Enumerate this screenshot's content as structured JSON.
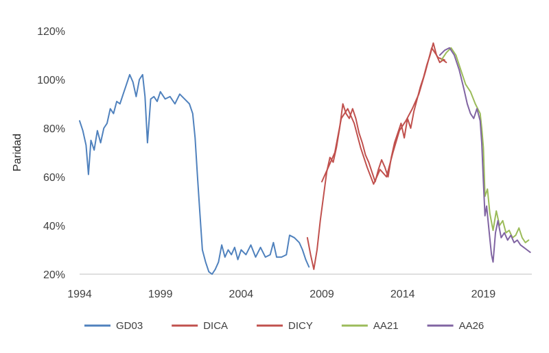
{
  "chart_data": {
    "type": "line",
    "title": "",
    "xlabel": "",
    "ylabel": "Paridad",
    "xlim": [
      1994,
      2022
    ],
    "ylim": [
      20,
      120
    ],
    "x_ticks": [
      "1994",
      "1999",
      "2004",
      "2009",
      "2014",
      "2019"
    ],
    "y_ticks": [
      "20%",
      "40%",
      "60%",
      "80%",
      "100%",
      "120%"
    ],
    "grid": false,
    "legend_position": "bottom",
    "series": [
      {
        "name": "GD03",
        "color": "#4F81BD",
        "points": [
          [
            1994.0,
            83
          ],
          [
            1994.2,
            79
          ],
          [
            1994.4,
            73
          ],
          [
            1994.55,
            61
          ],
          [
            1994.7,
            75
          ],
          [
            1994.9,
            71
          ],
          [
            1995.1,
            79
          ],
          [
            1995.3,
            74
          ],
          [
            1995.5,
            80
          ],
          [
            1995.7,
            82
          ],
          [
            1995.9,
            88
          ],
          [
            1996.1,
            86
          ],
          [
            1996.3,
            91
          ],
          [
            1996.5,
            90
          ],
          [
            1996.7,
            94
          ],
          [
            1996.9,
            98
          ],
          [
            1997.1,
            102
          ],
          [
            1997.3,
            99
          ],
          [
            1997.5,
            93
          ],
          [
            1997.7,
            100
          ],
          [
            1997.9,
            102
          ],
          [
            1998.05,
            93
          ],
          [
            1998.2,
            74
          ],
          [
            1998.4,
            92
          ],
          [
            1998.6,
            93
          ],
          [
            1998.8,
            91
          ],
          [
            1999.0,
            95
          ],
          [
            1999.3,
            92
          ],
          [
            1999.6,
            93
          ],
          [
            1999.9,
            90
          ],
          [
            2000.2,
            94
          ],
          [
            2000.5,
            92
          ],
          [
            2000.8,
            90
          ],
          [
            2001.0,
            86
          ],
          [
            2001.15,
            76
          ],
          [
            2001.3,
            60
          ],
          [
            2001.45,
            45
          ],
          [
            2001.6,
            30
          ],
          [
            2001.8,
            25
          ],
          [
            2002.0,
            21
          ],
          [
            2002.2,
            20
          ],
          [
            2002.4,
            22
          ],
          [
            2002.6,
            25
          ],
          [
            2002.8,
            32
          ],
          [
            2003.0,
            27
          ],
          [
            2003.2,
            30
          ],
          [
            2003.4,
            28
          ],
          [
            2003.6,
            31
          ],
          [
            2003.8,
            26
          ],
          [
            2004.0,
            30
          ],
          [
            2004.3,
            28
          ],
          [
            2004.6,
            32
          ],
          [
            2004.9,
            27
          ],
          [
            2005.2,
            31
          ],
          [
            2005.5,
            27
          ],
          [
            2005.8,
            28
          ],
          [
            2006.0,
            33
          ],
          [
            2006.2,
            27
          ],
          [
            2006.5,
            27
          ],
          [
            2006.8,
            28
          ],
          [
            2007.0,
            36
          ],
          [
            2007.3,
            35
          ],
          [
            2007.6,
            33
          ],
          [
            2007.8,
            30
          ],
          [
            2008.0,
            26
          ],
          [
            2008.2,
            23
          ]
        ]
      },
      {
        "name": "DICA",
        "color": "#C0504D",
        "points": [
          [
            2008.1,
            35
          ],
          [
            2008.3,
            28
          ],
          [
            2008.5,
            22
          ],
          [
            2008.7,
            30
          ],
          [
            2008.9,
            42
          ],
          [
            2009.1,
            52
          ],
          [
            2009.3,
            62
          ],
          [
            2009.5,
            68
          ],
          [
            2009.7,
            66
          ],
          [
            2009.9,
            72
          ],
          [
            2010.1,
            80
          ],
          [
            2010.3,
            90
          ],
          [
            2010.5,
            86
          ],
          [
            2010.7,
            84
          ],
          [
            2010.9,
            88
          ],
          [
            2011.1,
            84
          ],
          [
            2011.3,
            78
          ],
          [
            2011.5,
            74
          ],
          [
            2011.7,
            69
          ],
          [
            2011.9,
            66
          ],
          [
            2012.1,
            62
          ],
          [
            2012.3,
            58
          ],
          [
            2012.5,
            63
          ],
          [
            2012.7,
            67
          ],
          [
            2012.9,
            64
          ],
          [
            2013.1,
            60
          ],
          [
            2013.3,
            68
          ],
          [
            2013.5,
            74
          ],
          [
            2013.7,
            78
          ],
          [
            2013.9,
            82
          ],
          [
            2014.1,
            76
          ],
          [
            2014.3,
            84
          ],
          [
            2014.5,
            80
          ],
          [
            2014.7,
            87
          ],
          [
            2014.9,
            92
          ],
          [
            2015.1,
            97
          ],
          [
            2015.3,
            101
          ],
          [
            2015.5,
            106
          ],
          [
            2015.7,
            110
          ],
          [
            2015.9,
            115
          ],
          [
            2016.1,
            110
          ],
          [
            2016.3,
            107
          ],
          [
            2016.5,
            108
          ],
          [
            2016.7,
            107
          ]
        ]
      },
      {
        "name": "DICY",
        "color": "#C0504D",
        "points": [
          [
            2009.0,
            58
          ],
          [
            2009.4,
            64
          ],
          [
            2009.8,
            70
          ],
          [
            2010.2,
            84
          ],
          [
            2010.6,
            88
          ],
          [
            2011.0,
            82
          ],
          [
            2011.4,
            72
          ],
          [
            2011.8,
            64
          ],
          [
            2012.2,
            57
          ],
          [
            2012.6,
            63
          ],
          [
            2013.0,
            60
          ],
          [
            2013.4,
            70
          ],
          [
            2013.8,
            79
          ],
          [
            2014.2,
            83
          ],
          [
            2014.6,
            88
          ],
          [
            2015.0,
            94
          ],
          [
            2015.4,
            103
          ],
          [
            2015.8,
            113
          ],
          [
            2016.2,
            109
          ],
          [
            2016.6,
            108
          ]
        ]
      },
      {
        "name": "AA21",
        "color": "#9BBB59",
        "points": [
          [
            2016.4,
            108
          ],
          [
            2016.7,
            111
          ],
          [
            2017.0,
            113
          ],
          [
            2017.3,
            110
          ],
          [
            2017.6,
            104
          ],
          [
            2017.9,
            98
          ],
          [
            2018.2,
            95
          ],
          [
            2018.5,
            90
          ],
          [
            2018.8,
            86
          ],
          [
            2018.9,
            80
          ],
          [
            2019.0,
            72
          ],
          [
            2019.1,
            52
          ],
          [
            2019.25,
            55
          ],
          [
            2019.4,
            45
          ],
          [
            2019.6,
            38
          ],
          [
            2019.8,
            46
          ],
          [
            2020.0,
            40
          ],
          [
            2020.2,
            42
          ],
          [
            2020.4,
            37
          ],
          [
            2020.6,
            38
          ],
          [
            2020.8,
            35
          ],
          [
            2021.0,
            36
          ],
          [
            2021.2,
            39
          ],
          [
            2021.4,
            35
          ],
          [
            2021.6,
            33
          ],
          [
            2021.8,
            34
          ]
        ]
      },
      {
        "name": "AA26",
        "color": "#8064A2",
        "points": [
          [
            2016.3,
            110
          ],
          [
            2016.6,
            112
          ],
          [
            2016.9,
            113
          ],
          [
            2017.2,
            110
          ],
          [
            2017.5,
            104
          ],
          [
            2017.8,
            96
          ],
          [
            2018.0,
            90
          ],
          [
            2018.2,
            86
          ],
          [
            2018.4,
            84
          ],
          [
            2018.6,
            88
          ],
          [
            2018.8,
            83
          ],
          [
            2018.9,
            74
          ],
          [
            2019.0,
            58
          ],
          [
            2019.1,
            44
          ],
          [
            2019.2,
            48
          ],
          [
            2019.35,
            38
          ],
          [
            2019.5,
            28
          ],
          [
            2019.6,
            25
          ],
          [
            2019.75,
            37
          ],
          [
            2019.9,
            42
          ],
          [
            2020.1,
            35
          ],
          [
            2020.3,
            37
          ],
          [
            2020.5,
            34
          ],
          [
            2020.7,
            36
          ],
          [
            2020.9,
            33
          ],
          [
            2021.1,
            34
          ],
          [
            2021.3,
            32
          ],
          [
            2021.5,
            31
          ],
          [
            2021.7,
            30
          ],
          [
            2021.9,
            29
          ]
        ]
      }
    ]
  }
}
